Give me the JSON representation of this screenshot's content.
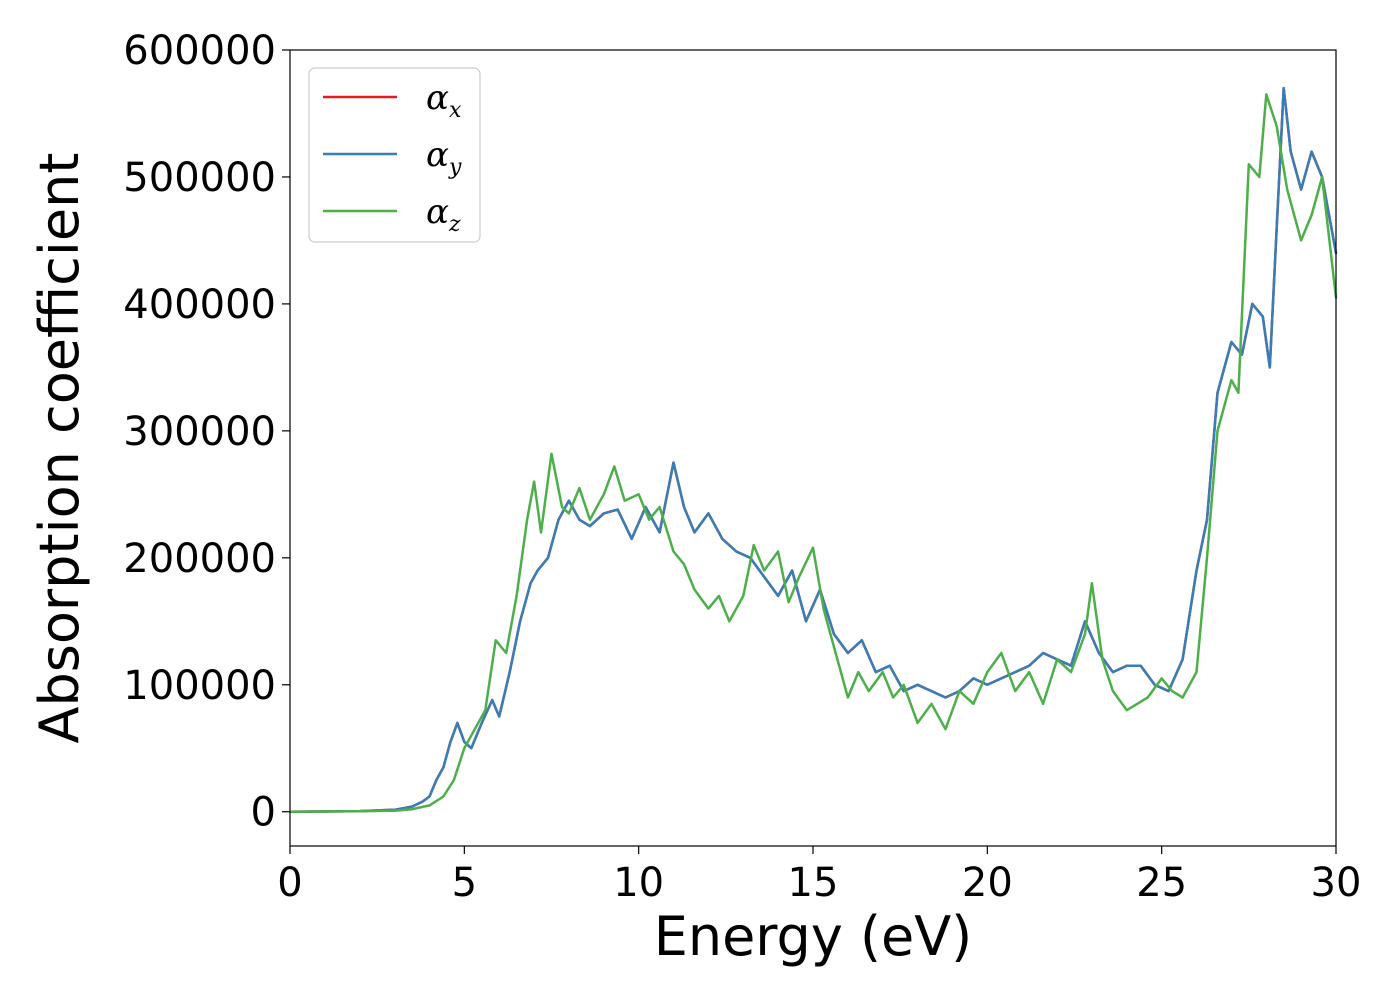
{
  "chart_data": {
    "type": "line",
    "xlabel": "Energy (eV)",
    "ylabel": "Absorption coefficient",
    "xlim": [
      0,
      30
    ],
    "ylim": [
      -27000,
      600000
    ],
    "xticks": [
      0,
      5,
      10,
      15,
      20,
      25,
      30
    ],
    "yticks": [
      0,
      100000,
      200000,
      300000,
      400000,
      500000,
      600000
    ],
    "grid": false,
    "legend": {
      "placement": "top-left",
      "entries": [
        {
          "symbol": "α",
          "sub": "x",
          "color": "#e41a1c"
        },
        {
          "symbol": "α",
          "sub": "y",
          "color": "#377eb8"
        },
        {
          "symbol": "α",
          "sub": "z",
          "color": "#4daf4a"
        }
      ]
    },
    "series": [
      {
        "color": "#e41a1c",
        "x": [
          0,
          2,
          3,
          3.5,
          3.8,
          4.0,
          4.2,
          4.4,
          4.6,
          4.8,
          5.0,
          5.2,
          5.5,
          5.8,
          6.0,
          6.3,
          6.6,
          6.9,
          7.1,
          7.4,
          7.7,
          8.0,
          8.3,
          8.6,
          9.0,
          9.4,
          9.8,
          10.2,
          10.6,
          11.0,
          11.3,
          11.6,
          12.0,
          12.4,
          12.8,
          13.2,
          13.6,
          14.0,
          14.4,
          14.8,
          15.2,
          15.6,
          16.0,
          16.4,
          16.8,
          17.2,
          17.6,
          18.0,
          18.4,
          18.8,
          19.2,
          19.6,
          20.0,
          20.4,
          20.8,
          21.2,
          21.6,
          22.0,
          22.4,
          22.8,
          23.2,
          23.6,
          24.0,
          24.4,
          24.8,
          25.2,
          25.6,
          26.0,
          26.3,
          26.6,
          27.0,
          27.3,
          27.6,
          27.9,
          28.1,
          28.3,
          28.5,
          28.7,
          29.0,
          29.3,
          29.6,
          30.0
        ],
        "y": [
          0,
          500,
          1500,
          4000,
          8000,
          12000,
          25000,
          35000,
          55000,
          70000,
          55000,
          50000,
          70000,
          88000,
          75000,
          110000,
          150000,
          180000,
          190000,
          200000,
          230000,
          245000,
          230000,
          225000,
          235000,
          238000,
          215000,
          240000,
          220000,
          275000,
          240000,
          220000,
          235000,
          215000,
          205000,
          200000,
          185000,
          170000,
          190000,
          150000,
          175000,
          140000,
          125000,
          135000,
          110000,
          115000,
          95000,
          100000,
          95000,
          90000,
          95000,
          105000,
          100000,
          105000,
          110000,
          115000,
          125000,
          120000,
          115000,
          150000,
          125000,
          110000,
          115000,
          115000,
          100000,
          95000,
          120000,
          190000,
          230000,
          330000,
          370000,
          360000,
          400000,
          390000,
          350000,
          460000,
          570000,
          520000,
          490000,
          520000,
          500000,
          440000
        ]
      },
      {
        "color": "#377eb8",
        "x": [
          0,
          2,
          3,
          3.5,
          3.8,
          4.0,
          4.2,
          4.4,
          4.6,
          4.8,
          5.0,
          5.2,
          5.5,
          5.8,
          6.0,
          6.3,
          6.6,
          6.9,
          7.1,
          7.4,
          7.7,
          8.0,
          8.3,
          8.6,
          9.0,
          9.4,
          9.8,
          10.2,
          10.6,
          11.0,
          11.3,
          11.6,
          12.0,
          12.4,
          12.8,
          13.2,
          13.6,
          14.0,
          14.4,
          14.8,
          15.2,
          15.6,
          16.0,
          16.4,
          16.8,
          17.2,
          17.6,
          18.0,
          18.4,
          18.8,
          19.2,
          19.6,
          20.0,
          20.4,
          20.8,
          21.2,
          21.6,
          22.0,
          22.4,
          22.8,
          23.2,
          23.6,
          24.0,
          24.4,
          24.8,
          25.2,
          25.6,
          26.0,
          26.3,
          26.6,
          27.0,
          27.3,
          27.6,
          27.9,
          28.1,
          28.3,
          28.5,
          28.7,
          29.0,
          29.3,
          29.6,
          30.0
        ],
        "y": [
          0,
          500,
          1500,
          4000,
          8000,
          12000,
          25000,
          35000,
          55000,
          70000,
          55000,
          50000,
          70000,
          88000,
          75000,
          110000,
          150000,
          180000,
          190000,
          200000,
          230000,
          245000,
          230000,
          225000,
          235000,
          238000,
          215000,
          240000,
          220000,
          275000,
          240000,
          220000,
          235000,
          215000,
          205000,
          200000,
          185000,
          170000,
          190000,
          150000,
          175000,
          140000,
          125000,
          135000,
          110000,
          115000,
          95000,
          100000,
          95000,
          90000,
          95000,
          105000,
          100000,
          105000,
          110000,
          115000,
          125000,
          120000,
          115000,
          150000,
          125000,
          110000,
          115000,
          115000,
          100000,
          95000,
          120000,
          190000,
          230000,
          330000,
          370000,
          360000,
          400000,
          390000,
          350000,
          460000,
          570000,
          520000,
          490000,
          520000,
          500000,
          440000
        ]
      },
      {
        "color": "#4daf4a",
        "x": [
          0,
          2,
          3,
          3.5,
          4.0,
          4.4,
          4.7,
          5.0,
          5.3,
          5.6,
          5.9,
          6.2,
          6.5,
          6.8,
          7.0,
          7.2,
          7.5,
          7.8,
          8.0,
          8.3,
          8.6,
          9.0,
          9.3,
          9.6,
          10.0,
          10.3,
          10.6,
          11.0,
          11.3,
          11.6,
          12.0,
          12.3,
          12.6,
          13.0,
          13.3,
          13.6,
          14.0,
          14.3,
          14.6,
          15.0,
          15.3,
          15.6,
          16.0,
          16.3,
          16.6,
          17.0,
          17.3,
          17.6,
          18.0,
          18.4,
          18.8,
          19.2,
          19.6,
          20.0,
          20.4,
          20.8,
          21.2,
          21.6,
          22.0,
          22.4,
          22.8,
          23.0,
          23.3,
          23.6,
          24.0,
          24.3,
          24.6,
          25.0,
          25.3,
          25.6,
          26.0,
          26.3,
          26.6,
          27.0,
          27.2,
          27.5,
          27.8,
          28.0,
          28.3,
          28.6,
          29.0,
          29.3,
          29.6,
          30.0
        ],
        "y": [
          0,
          300,
          800,
          2000,
          5000,
          12000,
          25000,
          50000,
          65000,
          80000,
          135000,
          125000,
          170000,
          230000,
          260000,
          220000,
          282000,
          240000,
          235000,
          255000,
          230000,
          250000,
          272000,
          245000,
          250000,
          230000,
          240000,
          205000,
          195000,
          175000,
          160000,
          170000,
          150000,
          170000,
          210000,
          190000,
          205000,
          165000,
          185000,
          208000,
          160000,
          130000,
          90000,
          110000,
          95000,
          110000,
          90000,
          100000,
          70000,
          85000,
          65000,
          95000,
          85000,
          110000,
          125000,
          95000,
          110000,
          85000,
          120000,
          110000,
          140000,
          180000,
          120000,
          95000,
          80000,
          85000,
          90000,
          105000,
          95000,
          90000,
          110000,
          200000,
          300000,
          340000,
          330000,
          510000,
          500000,
          565000,
          540000,
          490000,
          450000,
          470000,
          500000,
          405000
        ]
      }
    ]
  }
}
